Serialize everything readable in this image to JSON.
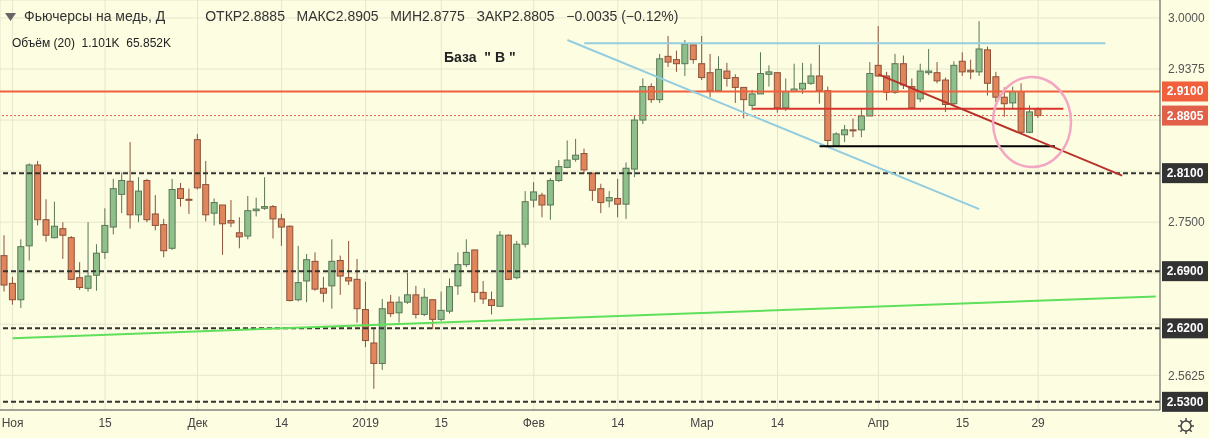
{
  "chart_data": {
    "type": "candlestick",
    "title": "Фьючерсы на медь, Д",
    "subtitle": "ОТКР2.8885   МАКС2.8905   МИН2.8775   ЗАКР2.8805   −0.0035 (−0.12%)",
    "annotations": [
      "Объём (20)  1.101K  65.852K",
      "База  \" В \""
    ],
    "categories": [
      null,
      "Ноя",
      null,
      null,
      null,
      null,
      null,
      null,
      null,
      null,
      null,
      null,
      "15",
      null,
      null,
      null,
      null,
      null,
      null,
      null,
      null,
      null,
      null,
      "Дек",
      null,
      null,
      null,
      null,
      null,
      null,
      null,
      null,
      null,
      "14",
      null,
      null,
      null,
      null,
      null,
      null,
      null,
      null,
      null,
      "2019",
      null,
      null,
      null,
      null,
      null,
      null,
      null,
      null,
      "15",
      null,
      null,
      null,
      null,
      null,
      null,
      null,
      null,
      null,
      null,
      "Фев",
      null,
      null,
      null,
      null,
      null,
      null,
      null,
      null,
      null,
      "14",
      null,
      null,
      null,
      null,
      null,
      null,
      null,
      null,
      null,
      "Мар",
      null,
      null,
      null,
      null,
      null,
      null,
      null,
      null,
      "14",
      null,
      null,
      null,
      null,
      null,
      null,
      null,
      null,
      null,
      null,
      null,
      "Апр",
      null,
      null,
      null,
      null,
      null,
      null,
      null,
      null,
      null,
      "15",
      null,
      null,
      null,
      null,
      null,
      null,
      null,
      null,
      "29",
      null,
      null,
      null,
      null,
      null,
      null,
      null,
      null,
      null,
      null,
      null,
      null,
      null,
      null
    ],
    "ohlc": [
      [
        2.709,
        2.734,
        2.665,
        2.673
      ],
      [
        2.675,
        2.683,
        2.649,
        2.655
      ],
      [
        2.655,
        2.729,
        2.645,
        2.72
      ],
      [
        2.721,
        2.822,
        2.703,
        2.82
      ],
      [
        2.82,
        2.825,
        2.746,
        2.753
      ],
      [
        2.753,
        2.778,
        2.726,
        2.734
      ],
      [
        2.731,
        2.775,
        2.73,
        2.745
      ],
      [
        2.742,
        2.75,
        2.705,
        2.734
      ],
      [
        2.731,
        2.733,
        2.679,
        2.68
      ],
      [
        2.682,
        2.701,
        2.667,
        2.67
      ],
      [
        2.669,
        2.75,
        2.665,
        2.684
      ],
      [
        2.685,
        2.723,
        2.666,
        2.712
      ],
      [
        2.713,
        2.767,
        2.705,
        2.746
      ],
      [
        2.744,
        2.803,
        2.735,
        2.791
      ],
      [
        2.784,
        2.811,
        2.761,
        2.801
      ],
      [
        2.8,
        2.848,
        2.742,
        2.759
      ],
      [
        2.759,
        2.805,
        2.75,
        2.788
      ],
      [
        2.801,
        2.803,
        2.75,
        2.753
      ],
      [
        2.76,
        2.783,
        2.74,
        2.746
      ],
      [
        2.747,
        2.754,
        2.707,
        2.715
      ],
      [
        2.718,
        2.803,
        2.716,
        2.79
      ],
      [
        2.791,
        2.798,
        2.769,
        2.779
      ],
      [
        2.778,
        2.791,
        2.76,
        2.777
      ],
      [
        2.851,
        2.858,
        2.79,
        2.792
      ],
      [
        2.796,
        2.825,
        2.751,
        2.759
      ],
      [
        2.761,
        2.779,
        2.746,
        2.774
      ],
      [
        2.771,
        2.771,
        2.71,
        2.748
      ],
      [
        2.752,
        2.777,
        2.744,
        2.749
      ],
      [
        2.737,
        2.756,
        2.718,
        2.732
      ],
      [
        2.733,
        2.782,
        2.729,
        2.764
      ],
      [
        2.764,
        2.78,
        2.757,
        2.766
      ],
      [
        2.767,
        2.805,
        2.765,
        2.769
      ],
      [
        2.769,
        2.771,
        2.73,
        2.754
      ],
      [
        2.754,
        2.76,
        2.721,
        2.744
      ],
      [
        2.745,
        2.746,
        2.653,
        2.654
      ],
      [
        2.655,
        2.721,
        2.653,
        2.676
      ],
      [
        2.678,
        2.711,
        2.652,
        2.704
      ],
      [
        2.702,
        2.713,
        2.666,
        2.668
      ],
      [
        2.669,
        2.683,
        2.652,
        2.663
      ],
      [
        2.672,
        2.729,
        2.644,
        2.702
      ],
      [
        2.703,
        2.709,
        2.661,
        2.684
      ],
      [
        2.682,
        2.727,
        2.673,
        2.678
      ],
      [
        2.68,
        2.705,
        2.627,
        2.644
      ],
      [
        2.643,
        2.677,
        2.597,
        2.605
      ],
      [
        2.602,
        2.621,
        2.546,
        2.577
      ],
      [
        2.577,
        2.656,
        2.569,
        2.644
      ],
      [
        2.652,
        2.661,
        2.634,
        2.638
      ],
      [
        2.639,
        2.659,
        2.627,
        2.652
      ],
      [
        2.652,
        2.688,
        2.65,
        2.661
      ],
      [
        2.661,
        2.672,
        2.632,
        2.637
      ],
      [
        2.637,
        2.669,
        2.635,
        2.658
      ],
      [
        2.655,
        2.655,
        2.619,
        2.631
      ],
      [
        2.631,
        2.665,
        2.629,
        2.642
      ],
      [
        2.641,
        2.681,
        2.638,
        2.671
      ],
      [
        2.672,
        2.713,
        2.661,
        2.698
      ],
      [
        2.698,
        2.729,
        2.695,
        2.713
      ],
      [
        2.716,
        2.716,
        2.652,
        2.664
      ],
      [
        2.664,
        2.678,
        2.65,
        2.656
      ],
      [
        2.655,
        2.665,
        2.637,
        2.648
      ],
      [
        2.647,
        2.739,
        2.647,
        2.734
      ],
      [
        2.734,
        2.735,
        2.679,
        2.68
      ],
      [
        2.682,
        2.727,
        2.68,
        2.723
      ],
      [
        2.723,
        2.788,
        2.719,
        2.775
      ],
      [
        2.777,
        2.799,
        2.768,
        2.787
      ],
      [
        2.783,
        2.786,
        2.756,
        2.771
      ],
      [
        2.771,
        2.804,
        2.753,
        2.801
      ],
      [
        2.801,
        2.826,
        2.799,
        2.818
      ],
      [
        2.817,
        2.85,
        2.816,
        2.826
      ],
      [
        2.827,
        2.852,
        2.824,
        2.832
      ],
      [
        2.834,
        2.84,
        2.809,
        2.814
      ],
      [
        2.81,
        2.81,
        2.776,
        2.789
      ],
      [
        2.791,
        2.797,
        2.761,
        2.774
      ],
      [
        2.776,
        2.788,
        2.768,
        2.78
      ],
      [
        2.779,
        2.803,
        2.756,
        2.772
      ],
      [
        2.772,
        2.823,
        2.754,
        2.816
      ],
      [
        2.815,
        2.881,
        2.805,
        2.875
      ],
      [
        2.875,
        2.926,
        2.87,
        2.916
      ],
      [
        2.916,
        2.92,
        2.896,
        2.9
      ],
      [
        2.9,
        2.956,
        2.896,
        2.95
      ],
      [
        2.953,
        2.978,
        2.94,
        2.946
      ],
      [
        2.949,
        2.96,
        2.934,
        2.944
      ],
      [
        2.944,
        2.973,
        2.929,
        2.968
      ],
      [
        2.967,
        2.967,
        2.944,
        2.949
      ],
      [
        2.944,
        2.978,
        2.924,
        2.927
      ],
      [
        2.933,
        2.956,
        2.903,
        2.911
      ],
      [
        2.911,
        2.953,
        2.911,
        2.937
      ],
      [
        2.935,
        2.945,
        2.916,
        2.926
      ],
      [
        2.927,
        2.931,
        2.896,
        2.915
      ],
      [
        2.915,
        2.915,
        2.877,
        2.9
      ],
      [
        2.893,
        2.912,
        2.887,
        2.907
      ],
      [
        2.907,
        2.958,
        2.907,
        2.932
      ],
      [
        2.931,
        2.942,
        2.916,
        2.934
      ],
      [
        2.933,
        2.933,
        2.884,
        2.89
      ],
      [
        2.89,
        2.926,
        2.886,
        2.91
      ],
      [
        2.91,
        2.944,
        2.909,
        2.913
      ],
      [
        2.913,
        2.945,
        2.907,
        2.92
      ],
      [
        2.92,
        2.944,
        2.918,
        2.929
      ],
      [
        2.929,
        2.967,
        2.895,
        2.911
      ],
      [
        2.911,
        2.916,
        2.843,
        2.85
      ],
      [
        2.843,
        2.86,
        2.842,
        2.858
      ],
      [
        2.857,
        2.869,
        2.848,
        2.863
      ],
      [
        2.863,
        2.877,
        2.854,
        2.862
      ],
      [
        2.863,
        2.889,
        2.854,
        2.88
      ],
      [
        2.88,
        2.946,
        2.88,
        2.932
      ],
      [
        2.942,
        2.99,
        2.928,
        2.929
      ],
      [
        2.929,
        2.934,
        2.899,
        2.909
      ],
      [
        2.909,
        2.956,
        2.907,
        2.944
      ],
      [
        2.944,
        2.954,
        2.913,
        2.918
      ],
      [
        2.916,
        2.926,
        2.889,
        2.89
      ],
      [
        2.901,
        2.944,
        2.897,
        2.935
      ],
      [
        2.933,
        2.962,
        2.93,
        2.935
      ],
      [
        2.933,
        2.946,
        2.92,
        2.923
      ],
      [
        2.924,
        2.927,
        2.885,
        2.894
      ],
      [
        2.895,
        2.947,
        2.893,
        2.942
      ],
      [
        2.947,
        2.958,
        2.929,
        2.934
      ],
      [
        2.936,
        2.949,
        2.925,
        2.934
      ],
      [
        2.934,
        2.996,
        2.929,
        2.962
      ],
      [
        2.961,
        2.965,
        2.905,
        2.92
      ],
      [
        2.928,
        2.934,
        2.897,
        2.903
      ],
      [
        2.903,
        2.915,
        2.879,
        2.895
      ],
      [
        2.896,
        2.916,
        2.889,
        2.91
      ],
      [
        2.91,
        2.92,
        2.859,
        2.86
      ],
      [
        2.86,
        2.893,
        2.859,
        2.885
      ],
      [
        2.8885,
        2.8905,
        2.8775,
        2.8805
      ],
      null,
      null,
      null,
      null,
      null,
      null,
      null,
      null,
      null,
      null,
      null,
      null,
      null,
      null
    ],
    "colors": [
      "#e0855c",
      "#e0855c",
      "#8fc08b",
      "#8fc08b",
      "#e0855c",
      "#e0855c",
      "#8fc08b",
      "#e0855c",
      "#e0855c",
      "#e0855c",
      "#8fc08b",
      "#8fc08b",
      "#8fc08b",
      "#8fc08b",
      "#8fc08b",
      "#e0855c",
      "#8fc08b",
      "#e0855c",
      "#e0855c",
      "#e0855c",
      "#8fc08b",
      "#e0855c",
      "#e0855c",
      "#e0855c",
      "#e0855c",
      "#8fc08b",
      "#e0855c",
      "#e0855c",
      "#e0855c",
      "#8fc08b",
      "#8fc08b",
      "#8fc08b",
      "#e0855c",
      "#e0855c",
      "#e0855c",
      "#8fc08b",
      "#8fc08b",
      "#e0855c",
      "#e0855c",
      "#8fc08b",
      "#e0855c",
      "#e0855c",
      "#e0855c",
      "#e0855c",
      "#e0855c",
      "#8fc08b",
      "#e0855c",
      "#8fc08b",
      "#8fc08b",
      "#e0855c",
      "#8fc08b",
      "#e0855c",
      "#8fc08b",
      "#8fc08b",
      "#8fc08b",
      "#8fc08b",
      "#e0855c",
      "#e0855c",
      "#e0855c",
      "#8fc08b",
      "#e0855c",
      "#8fc08b",
      "#8fc08b",
      "#8fc08b",
      "#e0855c",
      "#8fc08b",
      "#8fc08b",
      "#8fc08b",
      "#8fc08b",
      "#e0855c",
      "#e0855c",
      "#e0855c",
      "#8fc08b",
      "#e0855c",
      "#8fc08b",
      "#8fc08b",
      "#8fc08b",
      "#e0855c",
      "#8fc08b",
      "#e0855c",
      "#e0855c",
      "#8fc08b",
      "#e0855c",
      "#e0855c",
      "#e0855c",
      "#8fc08b",
      "#e0855c",
      "#e0855c",
      "#e0855c",
      "#8fc08b",
      "#8fc08b",
      "#8fc08b",
      "#e0855c",
      "#8fc08b",
      "#8fc08b",
      "#8fc08b",
      "#8fc08b",
      "#e0855c",
      "#e0855c",
      "#8fc08b",
      "#8fc08b",
      "#e0855c",
      "#8fc08b",
      "#8fc08b",
      "#e0855c",
      "#e0855c",
      "#8fc08b",
      "#e0855c",
      "#e0855c",
      "#8fc08b",
      "#8fc08b",
      "#e0855c",
      "#e0855c",
      "#8fc08b",
      "#e0855c",
      "#e0855c",
      "#8fc08b",
      "#e0855c",
      "#e0855c",
      "#e0855c",
      "#8fc08b",
      "#e0855c",
      "#8fc08b",
      "#e0855c",
      null,
      null,
      null,
      null,
      null,
      null,
      null,
      null,
      null,
      null,
      null,
      null,
      null,
      null
    ],
    "series": [
      {
        "type": "line",
        "color": "#93cde0",
        "values": [
          null,
          null,
          null,
          null,
          null,
          null,
          null,
          null,
          null,
          null,
          null,
          null,
          null,
          null,
          null,
          null,
          null,
          null,
          null,
          null,
          null,
          null,
          null,
          null,
          null,
          null,
          null,
          null,
          null,
          null,
          null,
          null,
          null,
          null,
          null,
          null,
          null,
          null,
          null,
          null,
          null,
          null,
          null,
          null,
          null,
          null,
          null,
          null,
          null,
          null,
          null,
          null,
          null,
          null,
          null,
          null,
          null,
          null,
          null,
          null,
          null,
          null,
          null,
          null,
          null,
          null,
          null,
          null,
          null,
          2.969,
          null,
          null,
          null,
          null,
          null,
          null,
          null,
          null,
          null,
          null,
          null,
          null,
          null,
          null,
          null,
          null,
          null,
          null,
          null,
          null,
          null,
          null,
          null,
          null,
          null,
          null,
          null,
          null,
          null,
          null,
          null,
          null,
          null,
          null,
          null,
          null,
          null,
          null,
          null,
          null,
          null,
          null,
          null,
          null,
          null,
          null,
          null,
          null,
          null,
          null,
          null,
          null,
          null,
          null,
          null,
          null,
          null,
          null,
          null,
          null,
          null,
          2.969,
          null,
          null,
          null,
          null,
          null,
          null
        ]
      },
      {
        "type": "line",
        "color": "#93cde0",
        "values": [
          null,
          null,
          null,
          null,
          null,
          null,
          null,
          null,
          null,
          null,
          null,
          null,
          null,
          null,
          null,
          null,
          null,
          null,
          null,
          null,
          null,
          null,
          null,
          null,
          null,
          null,
          null,
          null,
          null,
          null,
          null,
          null,
          null,
          null,
          null,
          null,
          null,
          null,
          null,
          null,
          null,
          null,
          null,
          null,
          null,
          null,
          null,
          null,
          null,
          null,
          null,
          null,
          null,
          null,
          null,
          null,
          null,
          null,
          null,
          null,
          null,
          null,
          null,
          null,
          null,
          null,
          null,
          2.973,
          null,
          null,
          null,
          null,
          null,
          null,
          null,
          null,
          null,
          null,
          null,
          null,
          null,
          null,
          null,
          null,
          null,
          null,
          null,
          null,
          null,
          null,
          null,
          null,
          null,
          null,
          null,
          null,
          null,
          null,
          null,
          null,
          null,
          null,
          null,
          null,
          null,
          null,
          null,
          null,
          null,
          null,
          null,
          null,
          null,
          null,
          null,
          null,
          2.766,
          null,
          null,
          null,
          null,
          null,
          null,
          null,
          null,
          null,
          null,
          null,
          null,
          null,
          null,
          null,
          null,
          null,
          null,
          null,
          null,
          null
        ]
      },
      {
        "type": "line",
        "color": "#d9342b",
        "values": [
          null,
          null,
          null,
          null,
          null,
          null,
          null,
          null,
          null,
          null,
          null,
          null,
          null,
          null,
          null,
          null,
          null,
          null,
          null,
          null,
          null,
          null,
          null,
          null,
          null,
          null,
          null,
          null,
          null,
          null,
          null,
          null,
          null,
          null,
          null,
          null,
          null,
          null,
          null,
          null,
          null,
          null,
          null,
          null,
          null,
          null,
          null,
          null,
          null,
          null,
          null,
          null,
          null,
          null,
          null,
          null,
          null,
          null,
          null,
          null,
          null,
          null,
          null,
          null,
          null,
          null,
          null,
          null,
          null,
          null,
          null,
          null,
          null,
          null,
          null,
          null,
          null,
          null,
          null,
          null,
          null,
          null,
          null,
          null,
          null,
          null,
          null,
          null,
          null,
          2.889,
          null,
          null,
          null,
          null,
          null,
          null,
          null,
          null,
          null,
          null,
          null,
          null,
          null,
          null,
          null,
          null,
          null,
          null,
          null,
          null,
          null,
          null,
          null,
          null,
          null,
          null,
          null,
          null,
          null,
          null,
          null,
          null,
          null,
          null,
          null,
          null,
          2.889,
          null,
          null,
          null,
          null,
          null,
          null,
          null,
          null,
          null,
          null,
          null
        ]
      },
      {
        "type": "line",
        "color": "#000000",
        "values": [
          null,
          null,
          null,
          null,
          null,
          null,
          null,
          null,
          null,
          null,
          null,
          null,
          null,
          null,
          null,
          null,
          null,
          null,
          null,
          null,
          null,
          null,
          null,
          null,
          null,
          null,
          null,
          null,
          null,
          null,
          null,
          null,
          null,
          null,
          null,
          null,
          null,
          null,
          null,
          null,
          null,
          null,
          null,
          null,
          null,
          null,
          null,
          null,
          null,
          null,
          null,
          null,
          null,
          null,
          null,
          null,
          null,
          null,
          null,
          null,
          null,
          null,
          null,
          null,
          null,
          null,
          null,
          null,
          null,
          null,
          null,
          null,
          null,
          null,
          null,
          null,
          null,
          null,
          null,
          null,
          null,
          null,
          null,
          null,
          null,
          null,
          null,
          null,
          null,
          null,
          null,
          null,
          null,
          null,
          null,
          null,
          null,
          2.843,
          null,
          null,
          null,
          null,
          null,
          null,
          null,
          null,
          null,
          null,
          null,
          null,
          null,
          null,
          null,
          null,
          null,
          null,
          null,
          null,
          null,
          null,
          null,
          null,
          null,
          null,
          null,
          2.843,
          null,
          null,
          null,
          null,
          null,
          null,
          null,
          null,
          null,
          null,
          null,
          null
        ]
      },
      {
        "type": "line",
        "color": "#b8322a",
        "values": [
          null,
          null,
          null,
          null,
          null,
          null,
          null,
          null,
          null,
          null,
          null,
          null,
          null,
          null,
          null,
          null,
          null,
          null,
          null,
          null,
          null,
          null,
          null,
          null,
          null,
          null,
          null,
          null,
          null,
          null,
          null,
          null,
          null,
          null,
          null,
          null,
          null,
          null,
          null,
          null,
          null,
          null,
          null,
          null,
          null,
          null,
          null,
          null,
          null,
          null,
          null,
          null,
          null,
          null,
          null,
          null,
          null,
          null,
          null,
          null,
          null,
          null,
          null,
          null,
          null,
          null,
          null,
          null,
          null,
          null,
          null,
          null,
          null,
          null,
          null,
          null,
          null,
          null,
          null,
          null,
          null,
          null,
          null,
          null,
          null,
          null,
          null,
          null,
          null,
          null,
          null,
          null,
          null,
          null,
          null,
          null,
          null,
          null,
          null,
          null,
          null,
          null,
          null,
          null,
          2.931,
          null,
          null,
          null,
          null,
          null,
          null,
          null,
          null,
          null,
          null,
          null,
          null,
          null,
          null,
          null,
          null,
          null,
          null,
          null,
          null,
          null,
          null,
          null,
          null,
          null,
          null,
          null,
          null,
          2.807,
          null,
          null,
          null,
          null
        ]
      },
      {
        "type": "line",
        "color": "#5ee05a",
        "values": [
          null,
          2.608,
          null,
          null,
          null,
          null,
          null,
          null,
          null,
          null,
          null,
          null,
          null,
          null,
          null,
          null,
          null,
          null,
          null,
          null,
          null,
          null,
          null,
          null,
          null,
          null,
          null,
          null,
          null,
          null,
          null,
          null,
          null,
          null,
          null,
          null,
          null,
          null,
          null,
          null,
          null,
          null,
          null,
          null,
          null,
          null,
          null,
          null,
          null,
          null,
          null,
          null,
          null,
          null,
          null,
          null,
          null,
          null,
          null,
          null,
          null,
          null,
          null,
          null,
          null,
          null,
          null,
          null,
          null,
          null,
          null,
          null,
          null,
          null,
          null,
          null,
          null,
          null,
          null,
          null,
          null,
          null,
          null,
          null,
          null,
          null,
          null,
          null,
          null,
          null,
          null,
          null,
          null,
          null,
          null,
          null,
          null,
          null,
          null,
          null,
          null,
          null,
          null,
          null,
          null,
          null,
          null,
          null,
          null,
          null,
          null,
          null,
          null,
          null,
          null,
          null,
          null,
          null,
          null,
          null,
          null,
          null,
          null,
          null,
          null,
          null,
          null,
          null,
          null,
          null,
          null,
          null,
          null,
          null,
          null,
          null,
          null,
          2.659
        ]
      }
    ],
    "ylim": [
      2.52,
      3.022
    ],
    "yticks": [
      {
        "value": 2.5625,
        "label": "2.5625"
      },
      {
        "value": 2.625,
        "label": null
      },
      {
        "value": 2.6875,
        "label": null
      },
      {
        "value": 2.75,
        "label": "2.7500"
      },
      {
        "value": 2.8125,
        "label": null
      },
      {
        "value": 2.875,
        "label": null
      },
      {
        "value": 2.9375,
        "label": "2.9375"
      },
      {
        "value": 3,
        "label": "3.0000"
      }
    ],
    "ref_lines": [
      {
        "axis": "y",
        "value": 2.91,
        "label": "2.9100",
        "color": "#f0603c",
        "line_style": "solid"
      },
      {
        "axis": "y",
        "value": 2.8805,
        "label": "2.8805",
        "color": "#e0604a",
        "line_style": "dotted"
      },
      {
        "axis": "y",
        "value": 2.81,
        "label": "2.8100",
        "color": "#333333",
        "line_style": "dashed"
      },
      {
        "axis": "y",
        "value": 2.69,
        "label": "2.6900",
        "color": "#333333",
        "line_style": "dashed"
      },
      {
        "axis": "y",
        "value": 2.62,
        "label": "2.6200",
        "color": "#333333",
        "line_style": "dashed"
      },
      {
        "axis": "y",
        "value": 2.53,
        "label": "2.5300",
        "color": "#333333",
        "line_style": "dashed"
      }
    ],
    "grid": true
  }
}
